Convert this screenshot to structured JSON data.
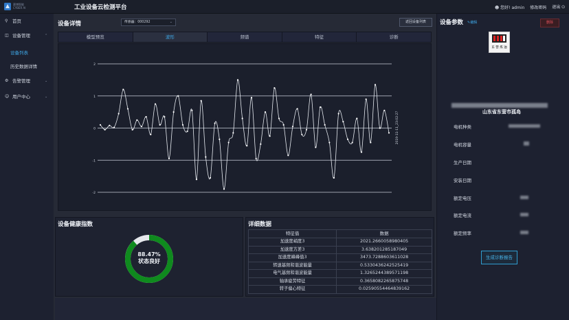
{
  "header": {
    "logo_text_line1": "赛博智能",
    "logo_text_line2": "CYBER AI",
    "app_title": "工业设备云检测平台",
    "greeting": "您好! admin",
    "change_password": "修改密码",
    "logout": "退出"
  },
  "sidebar": {
    "home": "首页",
    "device_mgmt": "设备管理",
    "device_list": "设备列表",
    "history": "历史数据详情",
    "alarm_mgmt": "告警管理",
    "user_center": "用户中心"
  },
  "device_detail": {
    "title": "设备详情",
    "sensor_select": "传感器：000292",
    "back_button": "返回设备列表",
    "tabs": [
      "模型预览",
      "波形",
      "频谱",
      "特征",
      "诊断"
    ],
    "active_tab": 1
  },
  "chart_data": {
    "type": "line",
    "ylim": [
      -2,
      2
    ],
    "yticks": [
      2,
      1,
      0,
      -1,
      -2
    ],
    "annotation": "2019-11-11_23:02:27",
    "grid": "horizontal",
    "series": [
      {
        "values": [
          0.1,
          -0.05,
          0.08,
          0.02,
          0.45,
          1.2,
          0.6,
          -0.05,
          0.25,
          0.05,
          0.35,
          -0.2,
          0.75,
          0.1,
          0.35,
          -0.95,
          0.5,
          1.0,
          0.1,
          -0.1,
          0.55,
          -1.6,
          0.85,
          -0.9,
          -1.55,
          0.15,
          -0.35,
          -1.9,
          -0.45,
          -0.15,
          1.5,
          0.3,
          -0.55,
          0.95,
          -0.95,
          -0.5,
          0.5,
          -0.25,
          1.25,
          0.3,
          0.1,
          -0.85,
          0.05,
          0.6,
          -0.2,
          -0.05,
          1.05,
          -0.6,
          0.65,
          0.1,
          -0.45,
          -1.55,
          0.45,
          0.2,
          -0.35,
          -0.45,
          0.3,
          -0.75,
          0.9,
          -0.45,
          1.35,
          0.0,
          0.55,
          -0.15
        ]
      }
    ]
  },
  "health": {
    "title": "设备健康指数",
    "value": 88.47,
    "percent_text": "88.47%",
    "status_text": "状态良好",
    "color": "#0f8a1e"
  },
  "details": {
    "title": "详细数据",
    "headers": [
      "特征值",
      "数据"
    ],
    "rows": [
      [
        "加速度峭度3",
        "2021.2660058980405"
      ],
      [
        "加速度方差3",
        "3.638201285187049"
      ],
      [
        "加速度峰峰值3",
        "3473.7288603611028"
      ],
      [
        "转速基频和谐波能量",
        "0.5330436242525419"
      ],
      [
        "电气基频和谐波能量",
        "1.3265244389571198"
      ],
      [
        "轴承疲劳特征",
        "0.3658082265875748"
      ],
      [
        "转子偏心特征",
        "0.02590554464839162"
      ]
    ]
  },
  "params": {
    "title": "设备参数",
    "edit": "编辑",
    "delete": "删除",
    "logo_caption": "东 营 炼 油",
    "location": "山东省东营市孤岛",
    "labels": [
      "电机种类",
      "电机容量",
      "生产日期",
      "安装日期",
      "额定电压",
      "额定电流",
      "额定频率"
    ],
    "generate_report": "生成诊断报告"
  },
  "colors": {
    "accent": "#3ea6e5",
    "danger": "#e0505c",
    "health_green": "#0f8a1e"
  }
}
